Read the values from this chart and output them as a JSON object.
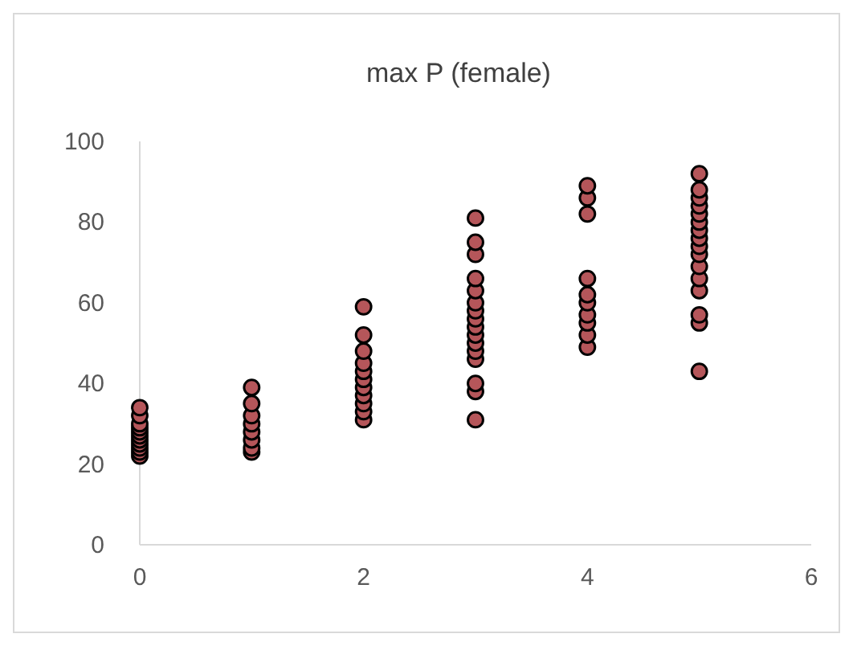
{
  "chart_data": {
    "type": "scatter",
    "title": "max P (female)",
    "x": [
      0,
      0,
      0,
      0,
      0,
      0,
      0,
      0,
      0,
      0,
      0,
      1,
      1,
      1,
      1,
      1,
      1,
      1,
      1,
      2,
      2,
      2,
      2,
      2,
      2,
      2,
      2,
      2,
      2,
      2,
      3,
      3,
      3,
      3,
      3,
      3,
      3,
      3,
      3,
      3,
      3,
      3,
      3,
      3,
      3,
      3,
      4,
      4,
      4,
      4,
      4,
      4,
      4,
      4,
      4,
      4,
      5,
      5,
      5,
      5,
      5,
      5,
      5,
      5,
      5,
      5,
      5,
      5,
      5,
      5,
      5,
      5
    ],
    "values": [
      22,
      23,
      24,
      25,
      26,
      27,
      28,
      29,
      30,
      32,
      34,
      23,
      24,
      26,
      28,
      30,
      32,
      35,
      39,
      31,
      33,
      35,
      37,
      39,
      41,
      43,
      45,
      48,
      52,
      59,
      31,
      38,
      40,
      46,
      48,
      50,
      52,
      54,
      56,
      58,
      60,
      63,
      66,
      72,
      75,
      81,
      49,
      52,
      55,
      57,
      60,
      62,
      66,
      82,
      86,
      89,
      43,
      55,
      57,
      63,
      66,
      69,
      72,
      74,
      76,
      78,
      80,
      82,
      84,
      86,
      88,
      92
    ],
    "color": "#b5565a",
    "marker": "circle",
    "grid": false,
    "xlim": [
      0,
      6
    ],
    "xticks": [
      0,
      2,
      4,
      6
    ],
    "ylim": [
      0,
      100
    ],
    "yticks": [
      0,
      20,
      40,
      60,
      80,
      100
    ]
  }
}
